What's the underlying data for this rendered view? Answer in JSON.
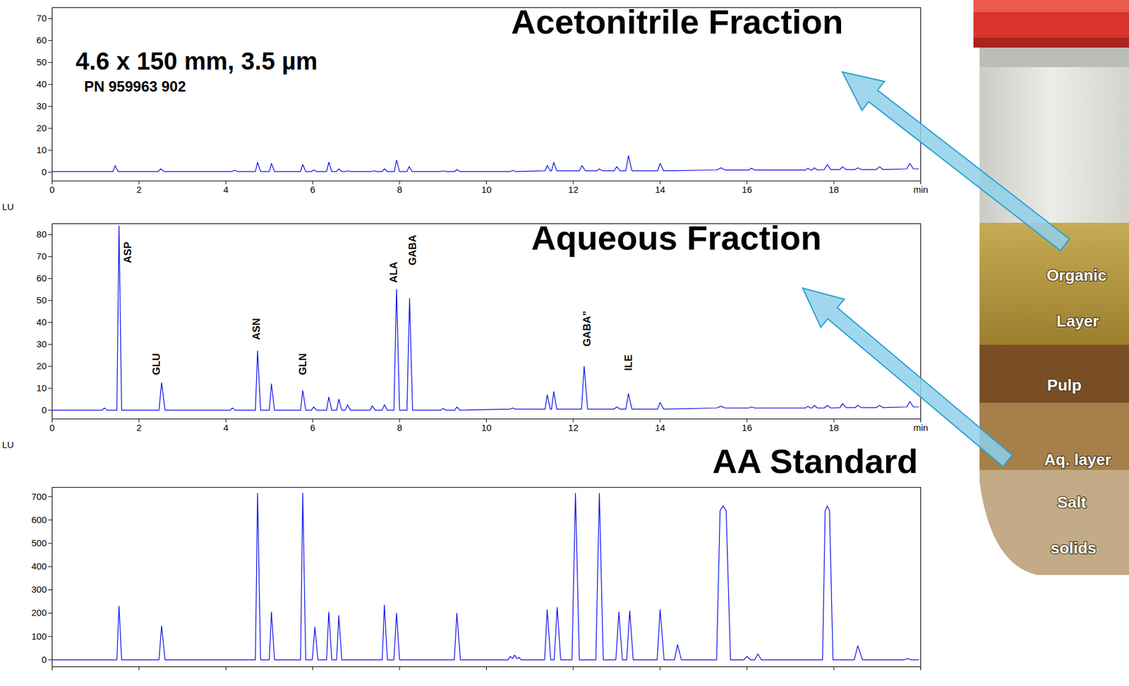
{
  "chart_data": [
    {
      "type": "line",
      "title": "Acetonitrile Fraction",
      "subtitle": "4.6 x 150 mm, 3.5 µm",
      "caption": "PN 959963 902",
      "color": "#0000ee",
      "grid": false,
      "xlim": [
        0,
        20
      ],
      "xticks": [
        0,
        2,
        4,
        6,
        8,
        10,
        12,
        14,
        16,
        18,
        {
          "value": 20,
          "label": "min"
        }
      ],
      "ylim": [
        -4,
        75
      ],
      "yticks": [
        0,
        10,
        20,
        30,
        40,
        50,
        60,
        70
      ],
      "x": [
        0,
        1.4,
        1.45,
        1.52,
        2.44,
        2.5,
        2.58,
        4.14,
        4.2,
        4.28,
        4.68,
        4.73,
        4.8,
        5.0,
        5.05,
        5.12,
        5.72,
        5.77,
        5.84,
        5.97,
        6.02,
        6.09,
        6.32,
        6.37,
        6.44,
        6.55,
        6.6,
        6.67,
        6.75,
        6.8,
        6.87,
        7.35,
        7.4,
        7.47,
        7.6,
        7.65,
        7.72,
        7.88,
        7.93,
        8.0,
        8.17,
        8.22,
        8.29,
        8.95,
        9.0,
        9.07,
        9.27,
        9.32,
        9.39,
        10.55,
        10.6,
        10.67,
        11.35,
        11.4,
        11.47,
        11.5,
        11.55,
        11.62,
        12.14,
        12.2,
        12.28,
        12.54,
        12.6,
        12.68,
        12.94,
        13.0,
        13.08,
        13.21,
        13.27,
        13.35,
        13.94,
        14.0,
        14.08,
        15.3,
        15.4,
        15.5,
        16.04,
        16.1,
        16.18,
        17.35,
        17.4,
        17.47,
        17.5,
        17.55,
        17.62,
        17.78,
        17.85,
        17.93,
        18.14,
        18.2,
        18.28,
        18.49,
        18.55,
        18.63,
        18.98,
        19.05,
        19.13,
        19.68,
        19.75,
        19.83,
        19.95
      ],
      "values": [
        0.3,
        0.3,
        3,
        0.3,
        0.3,
        1.5,
        0.3,
        0.3,
        0.8,
        0.3,
        0.3,
        4.5,
        0.3,
        0.3,
        4,
        0.3,
        0.3,
        3.5,
        0.3,
        0.3,
        1,
        0.3,
        0.3,
        4.5,
        0.3,
        0.3,
        1.5,
        0.3,
        0.3,
        0.6,
        0.3,
        0.3,
        0.6,
        0.3,
        0.3,
        1.5,
        0.3,
        0.3,
        5.5,
        0.3,
        0.3,
        2.5,
        0.3,
        0.3,
        0.6,
        0.3,
        0.3,
        1.2,
        0.3,
        0.3,
        0.8,
        0.3,
        0.6,
        3,
        0.6,
        0.6,
        4.5,
        0.6,
        0.6,
        3,
        0.6,
        0.6,
        1.5,
        0.6,
        0.6,
        2.5,
        0.6,
        0.6,
        7.5,
        0.6,
        0.6,
        4,
        0.6,
        1,
        2,
        1,
        1,
        1.8,
        1,
        1,
        1.8,
        1,
        1,
        2,
        1,
        1.2,
        3.5,
        1.2,
        1.2,
        2.5,
        1.2,
        1.2,
        2,
        1.2,
        1.2,
        2.5,
        1.2,
        1.5,
        4,
        1.5,
        1.5
      ]
    },
    {
      "type": "line",
      "title": "Aqueous Fraction",
      "y_label": "LU",
      "color": "#0000ee",
      "grid": false,
      "xlim": [
        0,
        20
      ],
      "xticks": [
        0,
        2,
        4,
        6,
        8,
        10,
        12,
        14,
        16,
        18,
        {
          "value": 20,
          "label": "min"
        }
      ],
      "ylim": [
        -4,
        85
      ],
      "yticks": [
        0,
        10,
        20,
        30,
        40,
        50,
        60,
        70,
        80
      ],
      "x": [
        0,
        1.15,
        1.2,
        1.27,
        1.49,
        1.54,
        1.6,
        2.46,
        2.52,
        2.6,
        4.1,
        4.15,
        4.22,
        4.68,
        4.73,
        4.8,
        5.0,
        5.05,
        5.12,
        5.72,
        5.77,
        5.84,
        5.97,
        6.02,
        6.09,
        6.32,
        6.37,
        6.44,
        6.55,
        6.6,
        6.67,
        6.75,
        6.8,
        6.87,
        7.32,
        7.37,
        7.44,
        7.6,
        7.65,
        7.72,
        7.87,
        7.93,
        8.0,
        8.17,
        8.23,
        8.3,
        8.95,
        9.0,
        9.07,
        9.27,
        9.32,
        9.39,
        10.55,
        10.6,
        10.67,
        11.35,
        11.4,
        11.47,
        11.5,
        11.55,
        11.62,
        12.19,
        12.25,
        12.33,
        12.94,
        13.0,
        13.08,
        13.21,
        13.27,
        13.35,
        13.94,
        14.0,
        14.08,
        15.3,
        15.4,
        15.5,
        16.04,
        16.1,
        16.18,
        17.35,
        17.4,
        17.47,
        17.5,
        17.55,
        17.62,
        17.78,
        17.85,
        17.93,
        18.14,
        18.2,
        18.28,
        18.49,
        18.55,
        18.63,
        18.98,
        19.05,
        19.13,
        19.68,
        19.75,
        19.83,
        19.95
      ],
      "values": [
        0,
        0,
        1,
        0,
        0,
        84,
        0,
        0,
        12.5,
        0,
        0,
        1,
        0,
        0,
        27,
        0,
        0,
        12,
        0,
        0,
        9,
        0,
        0,
        1.5,
        0,
        0,
        6,
        0,
        0,
        5,
        0,
        0,
        2.5,
        0,
        0,
        2,
        0,
        0,
        2.5,
        0,
        0,
        55,
        0,
        0,
        51,
        0,
        0,
        0.8,
        0,
        0,
        1.5,
        0,
        0.5,
        1,
        0.5,
        0.5,
        7,
        0.5,
        0.5,
        8.5,
        0.5,
        0.5,
        20,
        0.5,
        0.5,
        1.5,
        0.5,
        0.5,
        7.5,
        0.5,
        0.5,
        3.5,
        0.5,
        1,
        1.8,
        1,
        1,
        1.5,
        1,
        1,
        1.8,
        1,
        1,
        2.2,
        1,
        1,
        2.2,
        1,
        1.2,
        3,
        1.2,
        1.2,
        2.2,
        1.2,
        1.2,
        2.2,
        1.2,
        1.5,
        4,
        1.5,
        1.5
      ],
      "annotations": [
        {
          "text": "ASP",
          "x": 1.74,
          "y": 67
        },
        {
          "text": "GLU",
          "x": 2.4,
          "y": 16
        },
        {
          "text": "ASN",
          "x": 4.71,
          "y": 32
        },
        {
          "text": "GLN",
          "x": 5.77,
          "y": 16
        },
        {
          "text": "ALA",
          "x": 7.86,
          "y": 58
        },
        {
          "text": "GABA",
          "x": 8.3,
          "y": 66
        },
        {
          "text": "GABA”",
          "x": 12.32,
          "y": 29
        },
        {
          "text": "ILE",
          "x": 13.27,
          "y": 18
        }
      ]
    },
    {
      "type": "line",
      "title": "AA Standard",
      "y_label": "LU",
      "color": "#0000ee",
      "grid": false,
      "tick_labels": "y",
      "xlim": [
        0,
        20
      ],
      "xticks": [
        0,
        2,
        4,
        6,
        8,
        10,
        12,
        14,
        16,
        18,
        20
      ],
      "ylim": [
        -30,
        740
      ],
      "yticks": [
        0,
        100,
        200,
        300,
        400,
        500,
        600,
        700
      ],
      "x": [
        0,
        1.49,
        1.54,
        1.6,
        2.46,
        2.52,
        2.6,
        4.68,
        4.73,
        4.8,
        5.0,
        5.05,
        5.12,
        5.72,
        5.77,
        5.84,
        5.99,
        6.05,
        6.12,
        6.32,
        6.37,
        6.44,
        6.55,
        6.6,
        6.67,
        7.6,
        7.65,
        7.72,
        7.87,
        7.93,
        8.0,
        9.26,
        9.32,
        9.4,
        10.5,
        10.55,
        10.6,
        10.65,
        10.7,
        10.75,
        10.8,
        11.34,
        11.4,
        11.48,
        11.56,
        11.63,
        11.71,
        11.97,
        12.05,
        12.14,
        12.52,
        12.6,
        12.69,
        12.98,
        13.05,
        13.13,
        13.23,
        13.3,
        13.38,
        13.93,
        14.0,
        14.09,
        14.33,
        14.4,
        14.49,
        15.3,
        15.38,
        15.45,
        15.52,
        15.62,
        15.93,
        16.0,
        16.08,
        16.18,
        16.25,
        16.33,
        17.74,
        17.8,
        17.85,
        17.9,
        17.98,
        18.47,
        18.55,
        18.66,
        19.62,
        19.7,
        19.78,
        19.95
      ],
      "values": [
        0,
        0,
        230,
        0,
        0,
        145,
        0,
        0,
        715,
        0,
        0,
        205,
        0,
        0,
        715,
        0,
        0,
        140,
        0,
        0,
        205,
        0,
        0,
        190,
        0,
        0,
        235,
        0,
        0,
        200,
        0,
        0,
        200,
        0,
        0,
        15,
        5,
        20,
        5,
        10,
        0,
        0,
        215,
        0,
        0,
        225,
        0,
        0,
        715,
        0,
        0,
        715,
        0,
        0,
        205,
        0,
        0,
        210,
        0,
        0,
        215,
        0,
        0,
        65,
        0,
        0,
        640,
        660,
        640,
        0,
        0,
        15,
        0,
        0,
        25,
        0,
        0,
        640,
        660,
        640,
        0,
        0,
        60,
        0,
        0,
        5,
        0,
        0
      ]
    }
  ],
  "image_labels": [
    "Organic",
    "Layer",
    "Pulp",
    "Aq. layer",
    "Salt",
    "solids"
  ]
}
